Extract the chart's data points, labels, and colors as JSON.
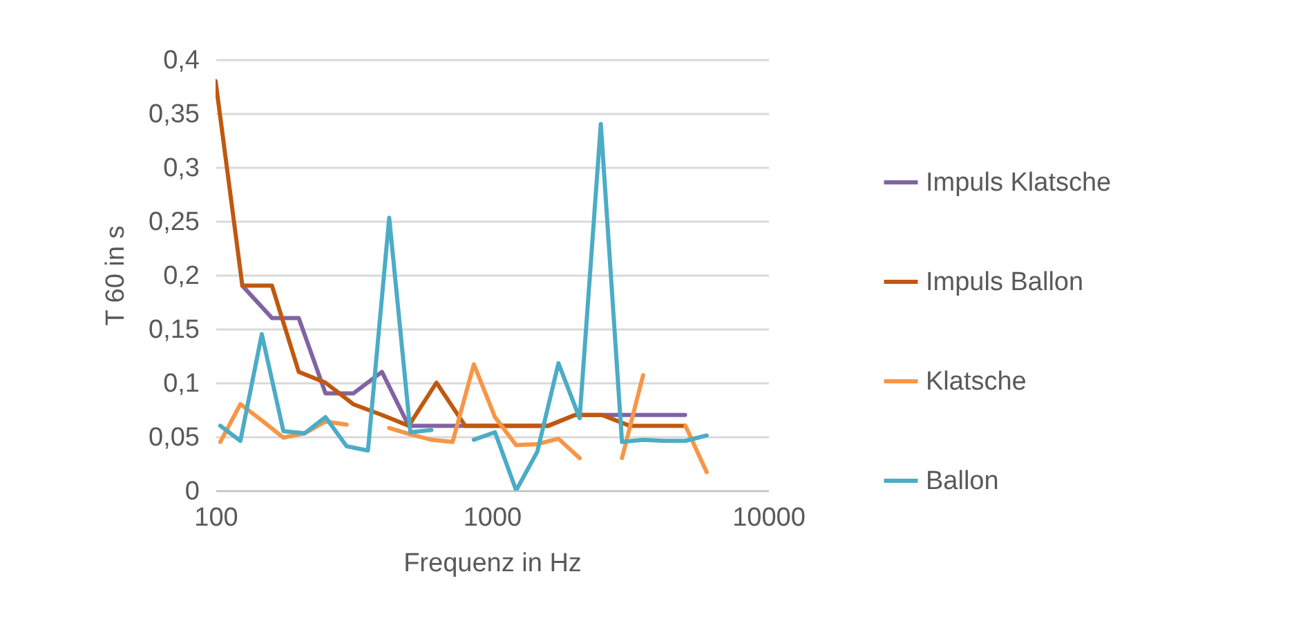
{
  "chart_data": {
    "type": "line",
    "xlabel": "Frequenz in Hz",
    "ylabel": "T 60 in s",
    "log": "x",
    "xlim": [
      100,
      10000
    ],
    "xticks": [
      100,
      1000,
      10000
    ],
    "ylim": [
      0,
      0.4
    ],
    "yticks": [
      0,
      {
        "value": 0.05,
        "label": "0,05"
      },
      {
        "value": 0.1,
        "label": "0,1"
      },
      {
        "value": 0.15,
        "label": "0,15"
      },
      {
        "value": 0.2,
        "label": "0,2"
      },
      {
        "value": 0.25,
        "label": "0,25"
      },
      {
        "value": 0.3,
        "label": "0,3"
      },
      {
        "value": 0.35,
        "label": "0,35"
      },
      {
        "value": 0.4,
        "label": "0,4"
      }
    ],
    "grid": "y",
    "legend": "right",
    "series": [
      {
        "name": "Impuls Klatsche",
        "color": "#8064a2",
        "x": [
          125,
          160,
          200,
          250,
          315,
          400,
          500,
          630,
          800,
          1000,
          1250,
          1600,
          2000,
          2500,
          3150,
          4000,
          5000
        ],
        "values": [
          0.19,
          0.16,
          0.16,
          0.09,
          0.09,
          0.11,
          0.06,
          0.06,
          0.06,
          0.06,
          0.06,
          0.06,
          0.07,
          0.07,
          0.07,
          0.07,
          0.07
        ]
      },
      {
        "name": "Impuls Ballon",
        "color": "#c0580f",
        "x": [
          100,
          125,
          160,
          200,
          250,
          315,
          400,
          500,
          630,
          800,
          1000,
          1250,
          1600,
          2000,
          2500,
          3150,
          4000,
          5000
        ],
        "values": [
          0.38,
          0.19,
          0.19,
          0.11,
          0.1,
          0.08,
          0.07,
          0.06,
          0.1,
          0.06,
          0.06,
          0.06,
          0.06,
          0.07,
          0.07,
          0.06,
          0.06,
          0.06
        ]
      },
      {
        "name": "Klatsche",
        "color": "#f79646",
        "x": [
          104,
          123,
          147,
          176,
          210,
          250,
          298,
          356,
          425,
          507,
          604,
          721,
          860,
          1026,
          1224,
          1460,
          1741,
          2077,
          2478,
          2956,
          3526,
          4206,
          5017,
          5985
        ],
        "values": [
          0.045,
          0.08,
          0.065,
          0.049,
          0.053,
          0.064,
          0.061,
          null,
          0.058,
          0.052,
          0.047,
          0.045,
          0.117,
          0.068,
          0.042,
          0.043,
          0.048,
          0.03,
          null,
          0.03,
          0.107,
          null,
          0.06,
          0.017
        ]
      },
      {
        "name": "Ballon",
        "color": "#4bacc6",
        "x": [
          104,
          123,
          147,
          176,
          210,
          250,
          298,
          356,
          425,
          507,
          604,
          721,
          860,
          1026,
          1224,
          1460,
          1741,
          2077,
          2478,
          2956,
          3526,
          4206,
          5017,
          5985
        ],
        "values": [
          0.06,
          0.046,
          0.145,
          0.055,
          0.053,
          0.068,
          0.041,
          0.037,
          0.253,
          0.054,
          0.056,
          null,
          0.047,
          0.054,
          0,
          0.036,
          0.118,
          0.067,
          0.34,
          0.045,
          0.047,
          0.046,
          0.046,
          0.051
        ]
      }
    ]
  }
}
